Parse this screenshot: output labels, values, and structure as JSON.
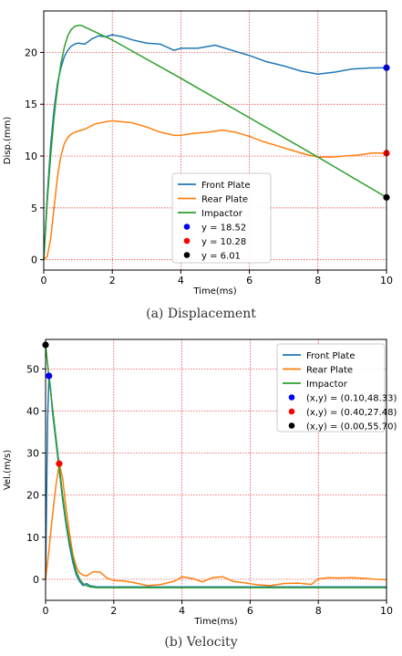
{
  "captions": {
    "a": "(a)  Displacement",
    "b": "(b)  Velocity"
  },
  "colors": {
    "front": "#1f77b4",
    "rear": "#ff7f0e",
    "impactor": "#2ca02c",
    "blue": "#0000ff",
    "red": "#ff0000",
    "black": "#000000",
    "grid": "#e03030"
  },
  "chart_data": [
    {
      "type": "line",
      "xlabel": "Time(ms)",
      "ylabel": "Disp.(mm)",
      "xlim": [
        0,
        10
      ],
      "ylim": [
        -1,
        24
      ],
      "xticks": [
        "0",
        "2",
        "4",
        "6",
        "8",
        "10"
      ],
      "yticks": [
        "0",
        "5",
        "10",
        "15",
        "20"
      ],
      "xtick_values": [
        0,
        2,
        4,
        6,
        8,
        10
      ],
      "ytick_values": [
        0,
        5,
        10,
        15,
        20
      ],
      "grid": true,
      "legend_position": "lower-right",
      "series": [
        {
          "name": "Front Plate",
          "color": "#1f77b4",
          "x": [
            0,
            0.1,
            0.2,
            0.3,
            0.4,
            0.5,
            0.6,
            0.7,
            0.8,
            0.9,
            1.0,
            1.2,
            1.4,
            1.6,
            1.8,
            2.0,
            2.3,
            2.6,
            3.0,
            3.4,
            3.8,
            4.0,
            4.5,
            5.0,
            5.5,
            6.0,
            6.5,
            7.0,
            7.5,
            8.0,
            8.5,
            9.0,
            9.5,
            10.0
          ],
          "y": [
            0,
            6,
            11,
            14.5,
            17,
            18.5,
            19.6,
            20.2,
            20.6,
            20.8,
            20.9,
            20.8,
            21.3,
            21.6,
            21.5,
            21.7,
            21.5,
            21.2,
            20.9,
            20.8,
            20.2,
            20.4,
            20.4,
            20.7,
            20.2,
            19.7,
            19.1,
            18.7,
            18.2,
            17.9,
            18.1,
            18.4,
            18.5,
            18.52
          ]
        },
        {
          "name": "Rear Plate",
          "color": "#ff7f0e",
          "x": [
            0,
            0.1,
            0.2,
            0.3,
            0.4,
            0.5,
            0.6,
            0.7,
            0.8,
            0.9,
            1.0,
            1.2,
            1.5,
            1.8,
            2.0,
            2.3,
            2.6,
            3.0,
            3.4,
            3.8,
            4.0,
            4.4,
            4.8,
            5.2,
            5.6,
            6.0,
            6.4,
            6.8,
            7.2,
            7.6,
            8.0,
            8.4,
            8.8,
            9.2,
            9.6,
            10.0
          ],
          "y": [
            0,
            0.3,
            2,
            5,
            8,
            10,
            11.2,
            11.8,
            12.1,
            12.3,
            12.4,
            12.6,
            13.1,
            13.3,
            13.4,
            13.3,
            13.2,
            12.8,
            12.3,
            12.0,
            12.0,
            12.2,
            12.3,
            12.5,
            12.3,
            11.9,
            11.4,
            11.0,
            10.6,
            10.2,
            9.9,
            9.9,
            10.0,
            10.1,
            10.3,
            10.28
          ]
        },
        {
          "name": "Impactor",
          "color": "#2ca02c",
          "x": [
            0,
            0.1,
            0.2,
            0.3,
            0.4,
            0.5,
            0.6,
            0.7,
            0.8,
            0.9,
            1.0,
            1.1,
            2.0,
            4.0,
            6.0,
            8.0,
            10.0
          ],
          "y": [
            0,
            5.5,
            10,
            13.7,
            16.6,
            18.9,
            20.5,
            21.6,
            22.2,
            22.5,
            22.6,
            22.6,
            21.2,
            17.5,
            13.7,
            9.9,
            6.01
          ]
        }
      ],
      "markers": [
        {
          "label": "y = 18.52",
          "x": 10,
          "y": 18.52,
          "color": "#0000ff"
        },
        {
          "label": "y = 10.28",
          "x": 10,
          "y": 10.28,
          "color": "#ff0000"
        },
        {
          "label": "y = 6.01",
          "x": 10,
          "y": 6.01,
          "color": "#000000"
        }
      ]
    },
    {
      "type": "line",
      "xlabel": "Time(ms)",
      "ylabel": "Vel.(m/s)",
      "xlim": [
        0,
        10
      ],
      "ylim": [
        -5,
        57
      ],
      "xticks": [
        "0",
        "2",
        "4",
        "6",
        "8",
        "10"
      ],
      "yticks": [
        "0",
        "10",
        "20",
        "30",
        "40",
        "50"
      ],
      "xtick_values": [
        0,
        2,
        4,
        6,
        8,
        10
      ],
      "ytick_values": [
        0,
        10,
        20,
        30,
        40,
        50
      ],
      "grid": true,
      "legend_position": "top-right",
      "series": [
        {
          "name": "Front Plate",
          "color": "#1f77b4",
          "x": [
            0,
            0.03,
            0.06,
            0.1,
            0.15,
            0.2,
            0.3,
            0.4,
            0.5,
            0.6,
            0.7,
            0.8,
            0.9,
            1.0,
            1.1,
            1.2,
            1.3,
            1.5,
            1.7,
            2.0,
            3.0,
            4.0,
            5.0,
            6.0,
            7.0,
            8.0,
            9.0,
            10.0
          ],
          "y": [
            0,
            20,
            38,
            48.33,
            45,
            40,
            33,
            26,
            19,
            13,
            8,
            4,
            1,
            -0.5,
            -1.5,
            -1,
            -1.5,
            -1.8,
            -1.8,
            -1.8,
            -1.8,
            -1.8,
            -1.8,
            -1.8,
            -1.8,
            -1.8,
            -1.8,
            -1.8
          ]
        },
        {
          "name": "Rear  Plate",
          "color": "#ff7f0e",
          "x": [
            0,
            0.1,
            0.2,
            0.3,
            0.4,
            0.5,
            0.6,
            0.7,
            0.8,
            0.9,
            1.0,
            1.1,
            1.2,
            1.4,
            1.6,
            1.8,
            2.0,
            2.3,
            2.6,
            3.0,
            3.4,
            3.8,
            4.0,
            4.3,
            4.6,
            4.9,
            5.2,
            5.5,
            5.8,
            6.2,
            6.6,
            7.0,
            7.4,
            7.8,
            8.0,
            8.3,
            8.6,
            9.0,
            9.4,
            9.7,
            10.0
          ],
          "y": [
            0,
            7,
            15,
            22,
            27.48,
            24,
            17,
            11,
            6,
            3,
            1.5,
            1,
            0.8,
            1.8,
            1.7,
            0.3,
            -0.3,
            -0.4,
            -0.8,
            -1.5,
            -1.2,
            -0.4,
            0.6,
            0.2,
            -0.6,
            0.4,
            0.6,
            -0.5,
            -0.8,
            -1.3,
            -1.5,
            -1.0,
            -0.9,
            -1.2,
            0.1,
            0.4,
            0.3,
            0.4,
            0.2,
            0.0,
            -0.1
          ]
        },
        {
          "name": "Impactor",
          "color": "#2ca02c",
          "x": [
            0,
            0.1,
            0.2,
            0.3,
            0.4,
            0.5,
            0.6,
            0.7,
            0.8,
            0.9,
            1.0,
            1.1,
            1.2,
            1.3,
            1.5,
            2.0,
            3.0,
            4.0,
            5.0,
            6.0,
            7.0,
            8.0,
            9.0,
            10.0
          ],
          "y": [
            55.7,
            48,
            41,
            34,
            27,
            20,
            14,
            9,
            5,
            2,
            0,
            -1,
            -1.5,
            -1.8,
            -2,
            -2,
            -2,
            -2,
            -2,
            -2,
            -2,
            -2,
            -2,
            -2
          ]
        }
      ],
      "markers": [
        {
          "label": "(x,y) = (0.10,48.33)",
          "x": 0.1,
          "y": 48.33,
          "color": "#0000ff"
        },
        {
          "label": "(x,y) = (0.40,27.48)",
          "x": 0.4,
          "y": 27.48,
          "color": "#ff0000"
        },
        {
          "label": "(x,y) = (0.00,55.70)",
          "x": 0.0,
          "y": 55.7,
          "color": "#000000"
        }
      ]
    }
  ]
}
